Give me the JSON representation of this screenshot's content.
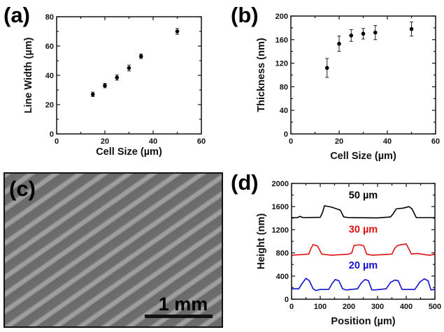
{
  "chart_data": [
    {
      "panel": "(a)",
      "type": "scatter",
      "xlabel": "Cell Size (µm)",
      "ylabel": "Line Width (µm)",
      "xlim": [
        0,
        60
      ],
      "ylim": [
        0,
        80
      ],
      "xticks": [
        0,
        20,
        40,
        60
      ],
      "yticks": [
        0,
        20,
        40,
        60,
        80
      ],
      "x": [
        15,
        20,
        25,
        30,
        35,
        50
      ],
      "y": [
        27,
        33,
        38.5,
        45,
        53,
        70
      ],
      "yerr": [
        1.5,
        1.5,
        1.8,
        2,
        1.5,
        2
      ],
      "color": "#000000"
    },
    {
      "panel": "(b)",
      "type": "scatter",
      "xlabel": "Cell Size (µm)",
      "ylabel": "Thickness (nm)",
      "xlim": [
        0,
        60
      ],
      "ylim": [
        0,
        200
      ],
      "xticks": [
        0,
        20,
        40,
        60
      ],
      "yticks": [
        0,
        40,
        80,
        120,
        160,
        200
      ],
      "x": [
        15,
        20,
        25,
        30,
        35,
        50
      ],
      "y": [
        112,
        153,
        167,
        170,
        172,
        178
      ],
      "yerr": [
        16,
        13,
        10,
        9,
        12,
        12
      ],
      "color": "#000000"
    },
    {
      "panel": "(d)",
      "type": "line",
      "xlabel": "Position (µm)",
      "ylabel": "Height (nm)",
      "xlim": [
        0,
        500
      ],
      "ylim": [
        0,
        2000
      ],
      "xticks": [
        0,
        100,
        200,
        300,
        400,
        500
      ],
      "yticks": [
        0,
        400,
        800,
        1200,
        1600,
        2000
      ],
      "series": [
        {
          "name": "50 µm",
          "color": "#000000",
          "x": [
            0,
            20,
            30,
            40,
            100,
            108,
            115,
            140,
            170,
            182,
            200,
            300,
            345,
            355,
            365,
            390,
            410,
            420,
            435,
            500
          ],
          "y": [
            1410,
            1410,
            1430,
            1410,
            1415,
            1500,
            1615,
            1590,
            1540,
            1420,
            1410,
            1405,
            1420,
            1480,
            1560,
            1575,
            1600,
            1560,
            1410,
            1410
          ]
        },
        {
          "name": "30 µm",
          "color": "#e01010",
          "x": [
            0,
            60,
            68,
            75,
            90,
            97,
            105,
            140,
            200,
            210,
            218,
            240,
            252,
            262,
            280,
            350,
            360,
            370,
            400,
            408,
            418,
            440,
            480,
            495,
            500
          ],
          "y": [
            760,
            780,
            880,
            945,
            920,
            860,
            780,
            760,
            780,
            800,
            930,
            940,
            920,
            780,
            760,
            780,
            880,
            930,
            955,
            880,
            780,
            790,
            760,
            770,
            800
          ]
        },
        {
          "name": "20 µm",
          "color": "#1010d0",
          "x": [
            0,
            25,
            35,
            50,
            62,
            75,
            85,
            100,
            130,
            140,
            152,
            165,
            178,
            190,
            230,
            243,
            256,
            268,
            280,
            290,
            330,
            345,
            360,
            372,
            385,
            395,
            430,
            448,
            463,
            476,
            486,
            500
          ],
          "y": [
            180,
            180,
            260,
            360,
            320,
            180,
            150,
            170,
            170,
            260,
            340,
            320,
            180,
            160,
            180,
            280,
            340,
            320,
            160,
            160,
            180,
            290,
            330,
            320,
            170,
            170,
            170,
            300,
            350,
            320,
            160,
            170
          ]
        }
      ]
    }
  ],
  "panel_c": {
    "label": "(c)",
    "scale_bar_label": "1 mm"
  }
}
